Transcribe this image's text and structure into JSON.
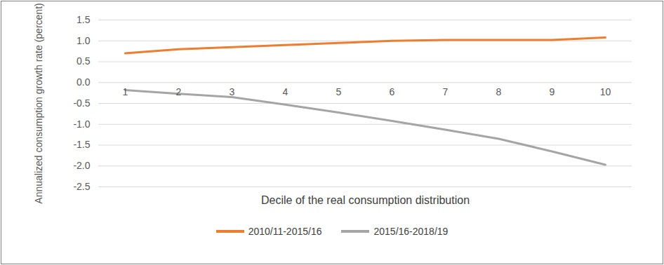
{
  "chart_data": {
    "type": "line",
    "x_label": "Decile of the real consumption distribution",
    "y_label": "Annualized consumption growth rate (percent)",
    "categories": [
      "1",
      "2",
      "3",
      "4",
      "5",
      "6",
      "7",
      "8",
      "9",
      "10"
    ],
    "series": [
      {
        "name": "2010/11-2015/16",
        "color": "#ed7d31",
        "values": [
          0.7,
          0.8,
          0.85,
          0.9,
          0.95,
          1.0,
          1.02,
          1.02,
          1.02,
          1.08
        ]
      },
      {
        "name": "2015/16-2018/19",
        "color": "#a5a5a5",
        "values": [
          -0.18,
          -0.27,
          -0.35,
          -0.53,
          -0.72,
          -0.92,
          -1.13,
          -1.35,
          -1.65,
          -1.97
        ]
      }
    ],
    "ylim": [
      -2.5,
      1.5
    ],
    "yticks": [
      {
        "value": -2.5,
        "label": "-2.5"
      },
      {
        "value": -2,
        "label": "-2.0"
      },
      -1.5,
      {
        "value": -1,
        "label": "-1.0"
      },
      -0.5,
      {
        "value": 0,
        "label": "0.0"
      },
      0.5,
      {
        "value": 1,
        "label": "1.0"
      },
      1.5
    ],
    "grid": true,
    "legend": "bottom"
  }
}
